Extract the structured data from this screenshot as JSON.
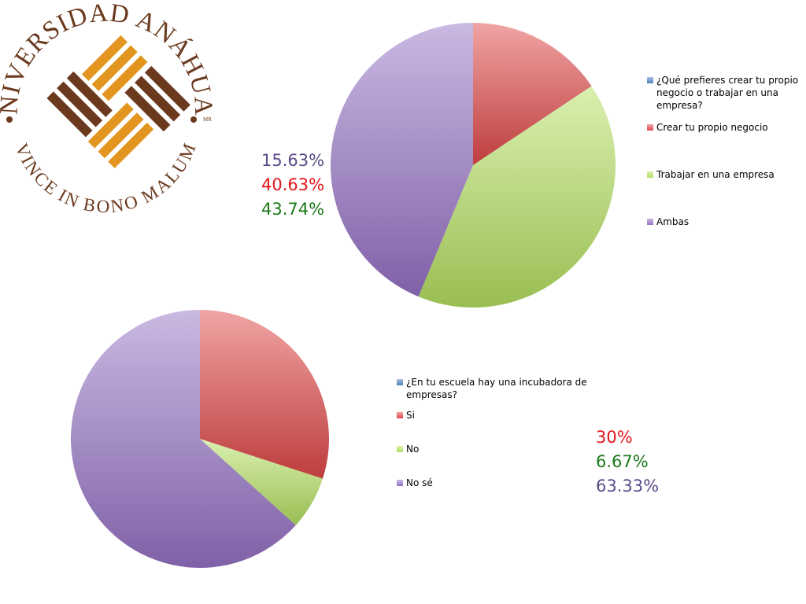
{
  "logo": {
    "top_text": "UNIVERSIDAD ANÁHUAC",
    "bottom_text": "VINCE IN BONO MALUM",
    "mark": "MR"
  },
  "chart_data": [
    {
      "type": "pie",
      "categories": [
        "¿Qué prefieres crear tu propio negocio o trabajar en una empresa?",
        "Crear tu propio negocio",
        "Trabajar en una empresa",
        "Ambas"
      ],
      "values": [
        null,
        15.63,
        40.63,
        43.74
      ],
      "colors": [
        "#4f81bd",
        "#e04848",
        "#b4e060",
        "#9572c4"
      ],
      "value_labels": [
        null,
        "15.63%",
        "40.63%",
        "43.74%"
      ],
      "label_colors": [
        null,
        "#5b4a8a",
        "#e0161a",
        "#1a7a1a"
      ]
    },
    {
      "type": "pie",
      "categories": [
        "¿En tu escuela hay una incubadora de empresas?",
        "Si",
        "No",
        "No sé"
      ],
      "values": [
        null,
        30,
        6.67,
        63.33
      ],
      "colors": [
        "#4f81bd",
        "#e04848",
        "#b4e060",
        "#9572c4"
      ],
      "value_labels": [
        null,
        "30%",
        "6.67%",
        "63.33%"
      ],
      "label_colors": [
        null,
        "#e0161a",
        "#1a7a1a",
        "#5b4a8a"
      ]
    }
  ]
}
